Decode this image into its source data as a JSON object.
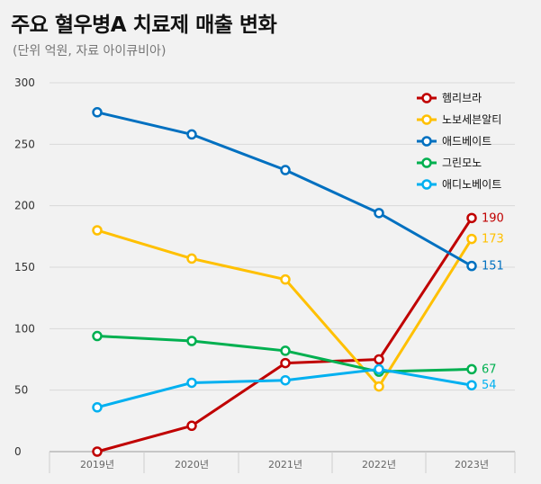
{
  "title": "주요 혈우병A 치료제 매출 변화",
  "subtitle": "(단위 억원, 자료 아이큐비아)",
  "chart_data": {
    "type": "line",
    "title": "주요 혈우병A 치료제 매출 변화",
    "subtitle": "(단위 억원, 자료 아이큐비아)",
    "xlabel": "",
    "ylabel": "",
    "x": [
      "2019년",
      "2020년",
      "2021년",
      "2022년",
      "2023년"
    ],
    "ylim": [
      0,
      300
    ],
    "yticks": [
      0,
      50,
      100,
      150,
      200,
      250,
      300
    ],
    "grid": true,
    "legend_position": "top-right",
    "series": [
      {
        "name": "헴리브라",
        "color": "#c00000",
        "values": [
          0,
          21,
          72,
          75,
          190
        ],
        "end_label": "190"
      },
      {
        "name": "노보세븐알티",
        "color": "#ffc000",
        "values": [
          180,
          157,
          140,
          53,
          173
        ],
        "end_label": "173"
      },
      {
        "name": "애드베이트",
        "color": "#0070c0",
        "values": [
          276,
          258,
          229,
          194,
          151
        ],
        "end_label": "151"
      },
      {
        "name": "그린모노",
        "color": "#00b050",
        "values": [
          94,
          90,
          82,
          65,
          67
        ],
        "end_label": "67"
      },
      {
        "name": "애디노베이트",
        "color": "#00b0f0",
        "values": [
          36,
          56,
          58,
          67,
          54
        ],
        "end_label": "54"
      }
    ]
  }
}
